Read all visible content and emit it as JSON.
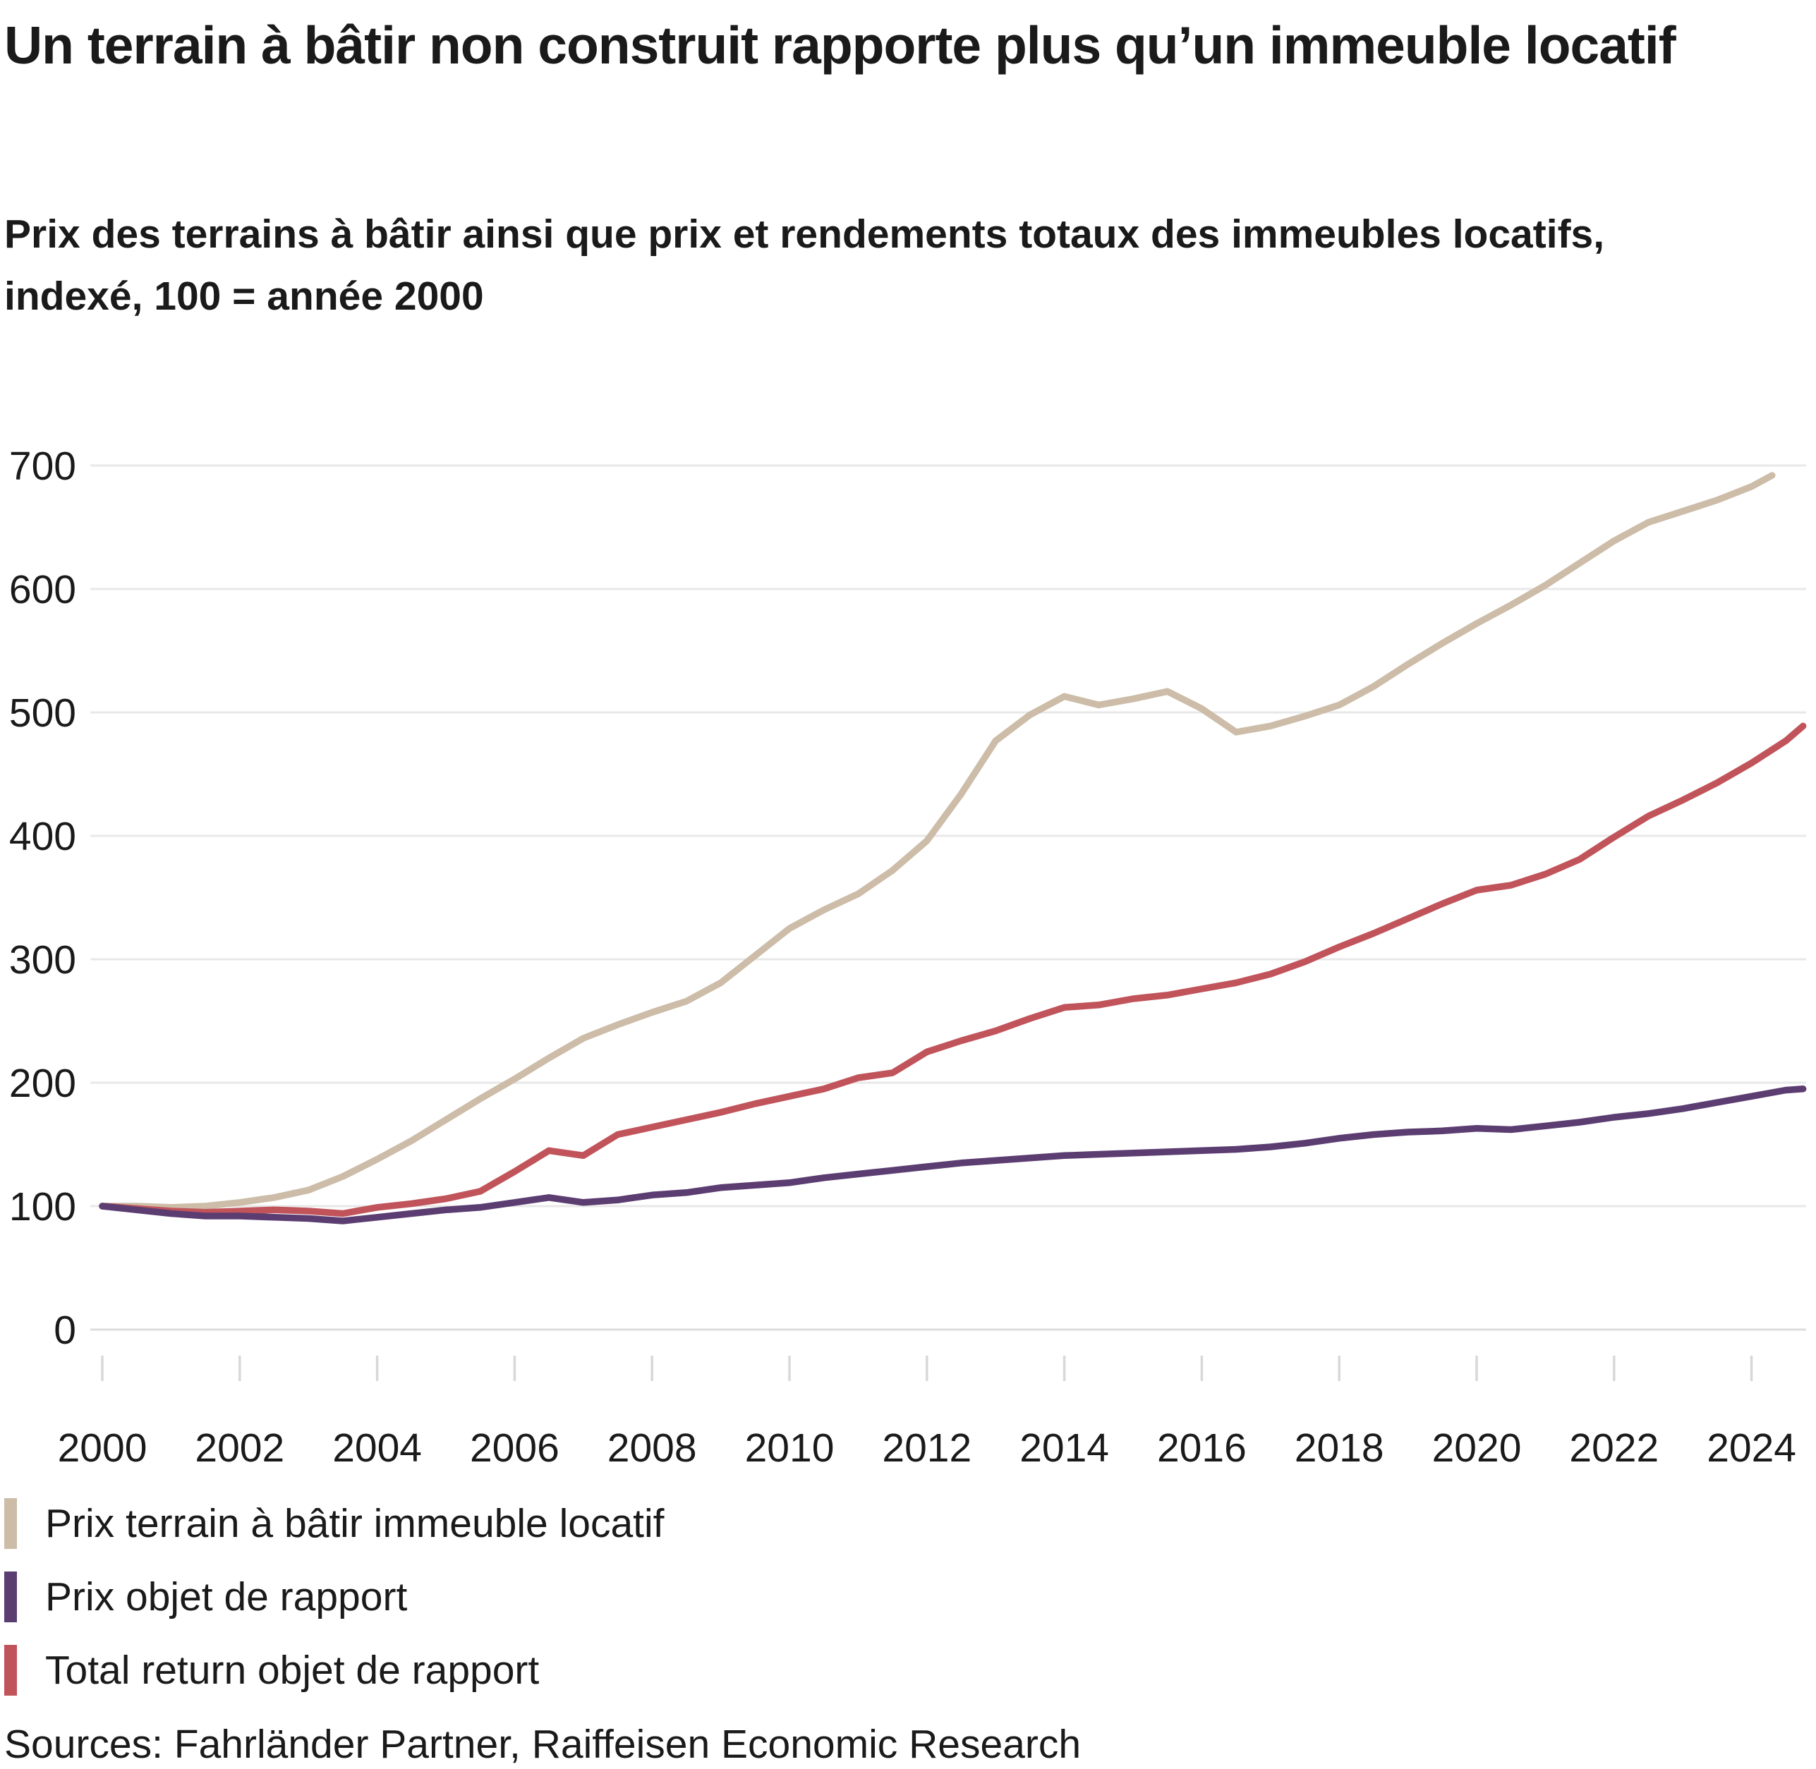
{
  "header": {
    "title": "Un terrain à bâtir non construit rapporte plus qu’un immeuble locatif",
    "subtitle_lines": [
      "Prix des terrains à bâtir ainsi que prix et rendements totaux des immeubles locatifs,",
      "indexé, 100 = année 2000"
    ]
  },
  "chart_data": {
    "type": "line",
    "title": "Un terrain à bâtir non construit rapporte plus qu’un immeuble locatif",
    "subtitle": "Prix des terrains à bâtir ainsi que prix et rendements totaux des immeubles locatifs, indexé, 100 = année 2000",
    "index_base": "100 = année 2000",
    "xlabel": "",
    "ylabel": "",
    "x_axis": {
      "ticks": [
        2000,
        2002,
        2004,
        2006,
        2008,
        2010,
        2012,
        2014,
        2016,
        2018,
        2020,
        2022,
        2024
      ],
      "range": [
        2000,
        2025
      ]
    },
    "y_axis": {
      "ticks": [
        0,
        100,
        200,
        300,
        400,
        500,
        600,
        700
      ],
      "range": [
        0,
        720
      ],
      "gridlines": true
    },
    "legend_position": "bottom-left",
    "series": [
      {
        "name": "Prix terrain à bâtir immeuble locatif",
        "color": "#ccbca8",
        "x": [
          2000,
          2000.5,
          2001,
          2001.5,
          2002,
          2002.5,
          2003,
          2003.5,
          2004,
          2004.5,
          2005,
          2005.5,
          2006,
          2006.5,
          2007,
          2007.5,
          2008,
          2008.5,
          2009,
          2009.5,
          2010,
          2010.5,
          2011,
          2011.5,
          2012,
          2012.5,
          2013,
          2013.5,
          2014,
          2014.5,
          2015,
          2015.5,
          2016,
          2016.5,
          2017,
          2017.5,
          2018,
          2018.5,
          2019,
          2019.5,
          2020,
          2020.5,
          2021,
          2021.5,
          2022,
          2022.5,
          2023,
          2023.5,
          2024,
          2024.3
        ],
        "values": [
          100,
          100,
          99,
          100,
          103,
          107,
          113,
          124,
          138,
          153,
          170,
          187,
          203,
          220,
          236,
          247,
          257,
          266,
          281,
          303,
          325,
          340,
          353,
          372,
          396,
          434,
          477,
          498,
          513,
          506,
          511,
          517,
          503,
          484,
          489,
          497,
          506,
          521,
          539,
          556,
          572,
          587,
          603,
          621,
          639,
          654,
          663,
          672,
          683,
          692
        ]
      },
      {
        "name": "Prix objet de rapport",
        "color": "#5c3d71",
        "x": [
          2000,
          2000.5,
          2001,
          2001.5,
          2002,
          2002.5,
          2003,
          2003.5,
          2004,
          2004.5,
          2005,
          2005.5,
          2006,
          2006.5,
          2007,
          2007.5,
          2008,
          2008.5,
          2009,
          2009.5,
          2010,
          2010.5,
          2011,
          2011.5,
          2012,
          2012.5,
          2013,
          2013.5,
          2014,
          2014.5,
          2015,
          2015.5,
          2016,
          2016.5,
          2017,
          2017.5,
          2018,
          2018.5,
          2019,
          2019.5,
          2020,
          2020.5,
          2021,
          2021.5,
          2022,
          2022.5,
          2023,
          2023.5,
          2024,
          2024.5,
          2024.75
        ],
        "values": [
          100,
          97,
          94,
          92,
          92,
          91,
          90,
          88,
          91,
          94,
          97,
          99,
          103,
          107,
          103,
          105,
          109,
          111,
          115,
          117,
          119,
          123,
          126,
          129,
          132,
          135,
          137,
          139,
          141,
          142,
          143,
          144,
          145,
          146,
          148,
          151,
          155,
          158,
          160,
          161,
          163,
          162,
          165,
          168,
          172,
          175,
          179,
          184,
          189,
          194,
          195
        ]
      },
      {
        "name": "Total return objet de rapport",
        "color": "#c1545a",
        "x": [
          2000,
          2000.5,
          2001,
          2001.5,
          2002,
          2002.5,
          2003,
          2003.5,
          2004,
          2004.5,
          2005,
          2005.5,
          2006,
          2006.5,
          2007,
          2007.5,
          2008,
          2008.5,
          2009,
          2009.5,
          2010,
          2010.5,
          2011,
          2011.5,
          2012,
          2012.5,
          2013,
          2013.5,
          2014,
          2014.5,
          2015,
          2015.5,
          2016,
          2016.5,
          2017,
          2017.5,
          2018,
          2018.5,
          2019,
          2019.5,
          2020,
          2020.5,
          2021,
          2021.5,
          2022,
          2022.5,
          2023,
          2023.5,
          2024,
          2024.5,
          2024.75
        ],
        "values": [
          100,
          98,
          96,
          95,
          96,
          97,
          96,
          94,
          99,
          102,
          106,
          112,
          128,
          145,
          141,
          158,
          164,
          170,
          176,
          183,
          189,
          195,
          204,
          208,
          225,
          234,
          242,
          252,
          261,
          263,
          268,
          271,
          276,
          281,
          288,
          298,
          310,
          321,
          333,
          345,
          356,
          360,
          369,
          381,
          399,
          416,
          429,
          443,
          459,
          477,
          489
        ]
      }
    ]
  },
  "legend": {
    "items": [
      {
        "label": "Prix terrain à bâtir immeuble locatif",
        "color": "#ccbca8"
      },
      {
        "label": "Prix objet de rapport",
        "color": "#5c3d71"
      },
      {
        "label": "Total return objet de rapport",
        "color": "#c1545a"
      }
    ]
  },
  "footer": {
    "sources": "Sources: Fahrländer Partner, Raiffeisen Economic Research"
  },
  "colors": {
    "background": "#ffffff",
    "grid": "#e8e8e8",
    "zero_line": "#dddddd",
    "tick": "#d8d8d8",
    "text": "#1a1a1a"
  }
}
